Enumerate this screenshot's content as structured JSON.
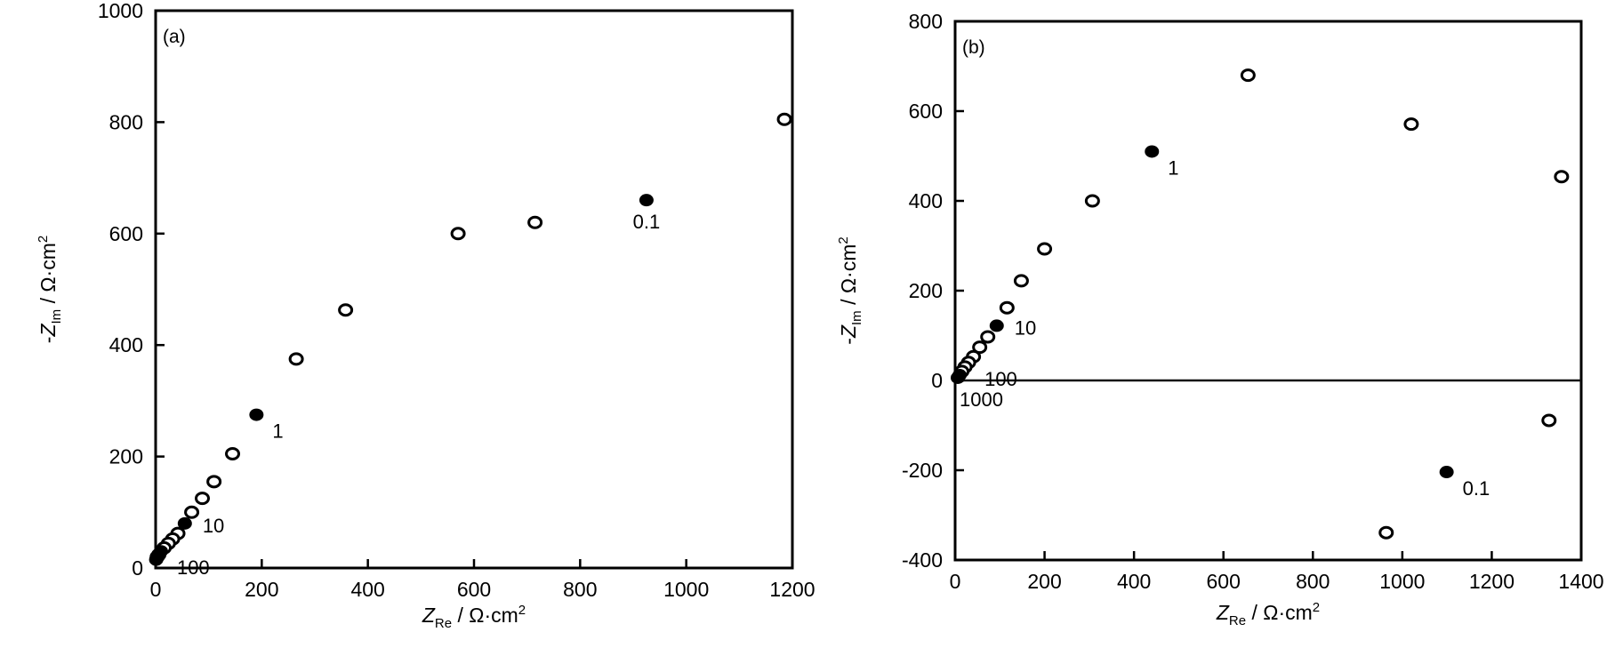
{
  "chart_data": [
    {
      "type": "scatter",
      "panel_label": "(a)",
      "xlabel": {
        "main": "Z",
        "sub": "Re",
        "unit": " / Ω·cm",
        "sup": "2"
      },
      "ylabel": {
        "prefix": "-",
        "main": "Z",
        "sub": "Im",
        "unit": " / Ω·cm",
        "sup": "2"
      },
      "xlim": [
        0,
        1200
      ],
      "ylim": [
        0,
        1000
      ],
      "xticks": [
        0,
        200,
        400,
        600,
        800,
        1000,
        1200
      ],
      "yticks": [
        0,
        200,
        400,
        600,
        800,
        1000
      ],
      "grid": false,
      "zero_line": false,
      "open_points": [
        [
          1185,
          805
        ],
        [
          715,
          620
        ],
        [
          570,
          600
        ],
        [
          358,
          463
        ],
        [
          265,
          375
        ],
        [
          145,
          205
        ],
        [
          110,
          155
        ],
        [
          88,
          125
        ],
        [
          68,
          100
        ],
        [
          42,
          62
        ],
        [
          32,
          52
        ],
        [
          24,
          44
        ],
        [
          16,
          36
        ],
        [
          6,
          24
        ],
        [
          3,
          20
        ]
      ],
      "filled_points": [
        [
          925,
          660
        ],
        [
          190,
          275
        ],
        [
          55,
          80
        ],
        [
          10,
          30
        ],
        [
          1,
          15
        ]
      ],
      "annotations": [
        {
          "text": "0.1",
          "x": 925,
          "y": 660,
          "pos": "below"
        },
        {
          "text": "1",
          "x": 190,
          "y": 275,
          "pos": "right-below"
        },
        {
          "text": "10",
          "x": 55,
          "y": 80,
          "pos": "right"
        },
        {
          "text": "100",
          "x": 10,
          "y": 30,
          "pos": "right-below"
        }
      ]
    },
    {
      "type": "scatter",
      "panel_label": "(b)",
      "xlabel": {
        "main": "Z",
        "sub": "Re",
        "unit": " / Ω·cm",
        "sup": "2"
      },
      "ylabel": {
        "prefix": "-",
        "main": "Z",
        "sub": "Im",
        "unit": " / Ω·cm",
        "sup": "2"
      },
      "xlim": [
        0,
        1400
      ],
      "ylim": [
        -400,
        800
      ],
      "xticks": [
        0,
        200,
        400,
        600,
        800,
        1000,
        1200,
        1400
      ],
      "yticks": [
        -400,
        -200,
        0,
        200,
        400,
        600,
        800
      ],
      "grid": false,
      "zero_line": true,
      "open_points": [
        [
          655,
          680
        ],
        [
          1020,
          571
        ],
        [
          1356,
          454
        ],
        [
          307,
          400
        ],
        [
          200,
          293
        ],
        [
          148,
          222
        ],
        [
          116,
          162
        ],
        [
          73,
          97
        ],
        [
          55,
          74
        ],
        [
          41,
          53
        ],
        [
          30,
          40
        ],
        [
          22,
          30
        ],
        [
          15,
          20
        ],
        [
          1328,
          -89
        ],
        [
          964,
          -339
        ]
      ],
      "filled_points": [
        [
          440,
          510
        ],
        [
          93,
          122
        ],
        [
          10,
          12
        ],
        [
          6,
          6
        ],
        [
          1099,
          -204
        ]
      ],
      "annotations": [
        {
          "text": "1",
          "x": 440,
          "y": 510,
          "pos": "right-below"
        },
        {
          "text": "10",
          "x": 93,
          "y": 122,
          "pos": "right"
        },
        {
          "text": "100",
          "x": 30,
          "y": 40,
          "pos": "right-below"
        },
        {
          "text": "1000",
          "x": 6,
          "y": 6,
          "pos": "below"
        },
        {
          "text": "0.1",
          "x": 1099,
          "y": -204,
          "pos": "right-below"
        }
      ]
    }
  ]
}
